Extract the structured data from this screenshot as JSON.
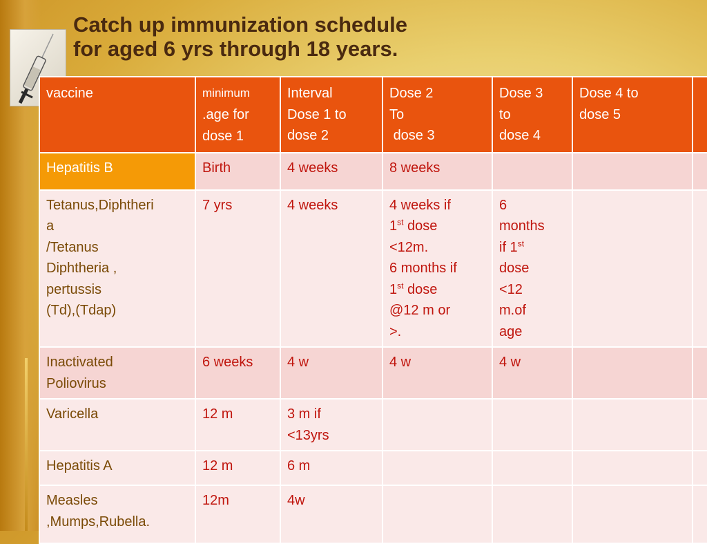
{
  "title": {
    "line1": "Catch up immunization schedule",
    "line2": "for aged 6 yrs through 18 years."
  },
  "header": {
    "vaccine": "vaccine",
    "min_age_l1": "minimum",
    "min_age_l2": ".age for",
    "min_age_l3": "dose 1",
    "int12_l1": "Interval",
    "int12_l2": "Dose 1 to",
    "int12_l3": "dose 2",
    "int23_l1": "Dose 2",
    "int23_l2": "To",
    "int23_l3": "dose 3",
    "int34_l1": "Dose 3",
    "int34_l2": "to",
    "int34_l3": "dose 4",
    "int45_l1": "Dose 4 to",
    "int45_l2": "dose 5"
  },
  "rows": [
    {
      "vaccine": "Hepatitis B",
      "min_age": "Birth",
      "d1_d2": "4 weeks",
      "d2_d3": "8 weeks"
    },
    {
      "vaccine_l1": "Tetanus,Diphtheri",
      "vaccine_l2": "a",
      "vaccine_l3": "/Tetanus",
      "vaccine_l4": "Diphtheria ,",
      "vaccine_l5": "pertussis",
      "vaccine_l6": "(Td),(Tdap)",
      "min_age": "7 yrs",
      "d1_d2": "4 weeks",
      "d2_d3_a": "4 weeks if",
      "d2_d3_b_pre": "1",
      "d2_d3_b_sup": "st",
      "d2_d3_b_post": " dose",
      "d2_d3_c": "<12m.",
      "d2_d3_d": "6 months if",
      "d2_d3_e_pre": "1",
      "d2_d3_e_sup": "st",
      "d2_d3_e_post": " dose",
      "d2_d3_f": "@12 m or",
      "d2_d3_g": ">.",
      "d3_d4_a": "6",
      "d3_d4_b": "months",
      "d3_d4_c_pre": "if 1",
      "d3_d4_c_sup": "st",
      "d3_d4_d": "dose",
      "d3_d4_e": "<12",
      "d3_d4_f": "m.of",
      "d3_d4_g": "age"
    },
    {
      "vaccine_l1": "Inactivated",
      "vaccine_l2": "Poliovirus",
      "min_age": "6 weeks",
      "d1_d2": "4 w",
      "d2_d3": "4 w",
      "d3_d4": "4 w"
    },
    {
      "vaccine": "Varicella",
      "min_age": "12 m",
      "d1_d2_a": "3 m if",
      "d1_d2_b": "<13yrs"
    },
    {
      "vaccine": "Hepatitis A",
      "min_age": "12 m",
      "d1_d2": "6 m"
    },
    {
      "vaccine_l1": "Measles",
      "vaccine_l2": ",Mumps,Rubella.",
      "min_age": "12m",
      "d1_d2": "4w"
    }
  ],
  "colors": {
    "header_bg": "#e9540e",
    "highlight_cell": "#f59a06",
    "row_dark": "#f6d5d3",
    "row_light": "#fae9e8",
    "value_text": "#c0160e",
    "name_text": "#7a4a06",
    "title_text": "#4a2a10"
  },
  "icons": [
    "syringe-icon"
  ]
}
